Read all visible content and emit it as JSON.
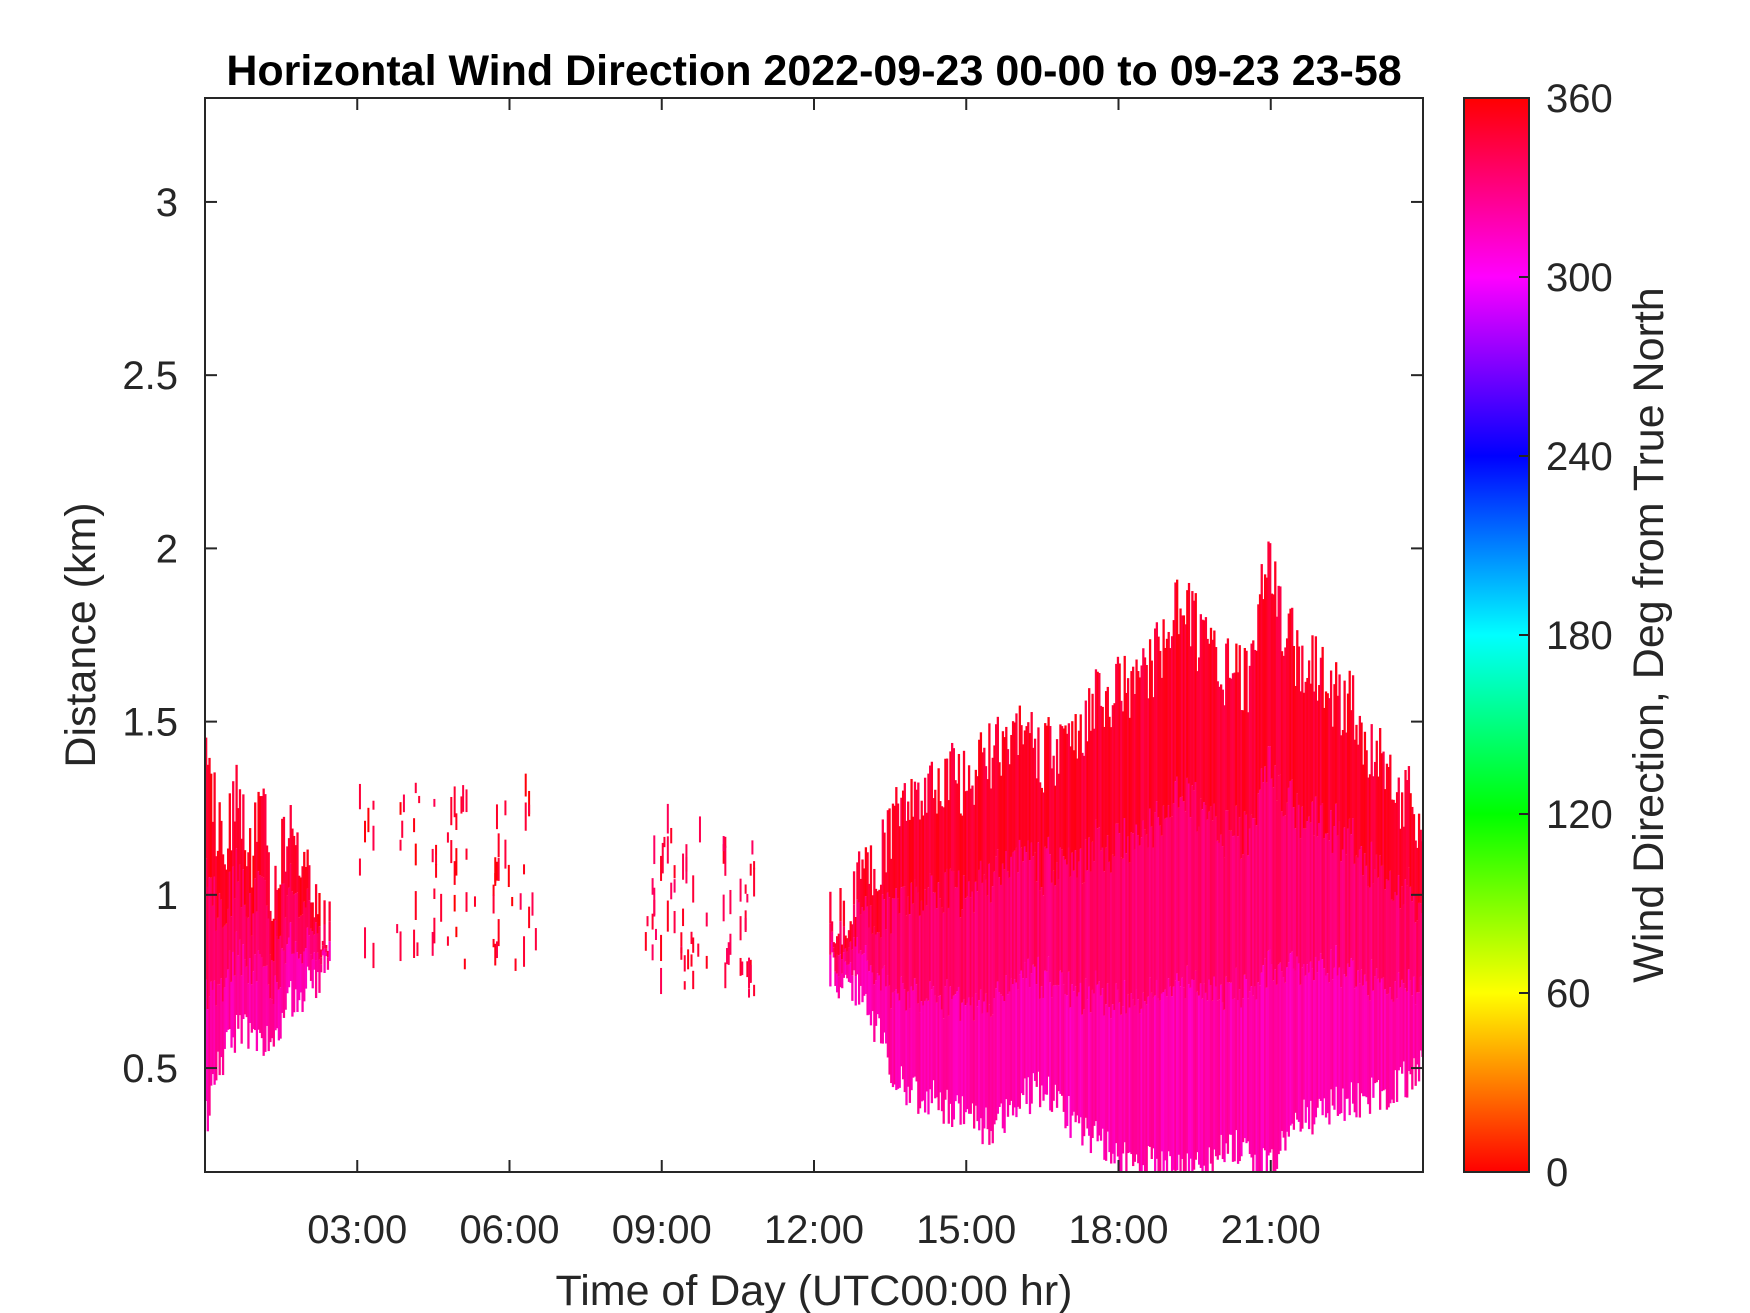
{
  "chart_data": {
    "type": "heatmap",
    "title": "Horizontal Wind Direction 2022-09-23 00-00 to 09-23 23-58",
    "xlabel": "Time of Day (UTC00:00 hr)",
    "ylabel": "Distance (km)",
    "xlim_hours": [
      0,
      24
    ],
    "ylim_km": [
      0.2,
      3.3
    ],
    "x_ticks": [
      {
        "value": 3,
        "label": "03:00"
      },
      {
        "value": 6,
        "label": "06:00"
      },
      {
        "value": 9,
        "label": "09:00"
      },
      {
        "value": 12,
        "label": "12:00"
      },
      {
        "value": 15,
        "label": "15:00"
      },
      {
        "value": 18,
        "label": "18:00"
      },
      {
        "value": 21,
        "label": "21:00"
      }
    ],
    "y_ticks": [
      {
        "value": 0.5,
        "label": "0.5"
      },
      {
        "value": 1,
        "label": "1"
      },
      {
        "value": 1.5,
        "label": "1.5"
      },
      {
        "value": 2,
        "label": "2"
      },
      {
        "value": 2.5,
        "label": "2.5"
      },
      {
        "value": 3,
        "label": "3"
      }
    ],
    "colorbar": {
      "label": "Wind Direction, Deg from True North",
      "range": [
        0,
        360
      ],
      "ticks": [
        {
          "value": 0,
          "label": "0"
        },
        {
          "value": 60,
          "label": "60"
        },
        {
          "value": 120,
          "label": "120"
        },
        {
          "value": 180,
          "label": "180"
        },
        {
          "value": 240,
          "label": "240"
        },
        {
          "value": 300,
          "label": "300"
        },
        {
          "value": 360,
          "label": "360"
        }
      ],
      "colormap": "hsv",
      "colors": [
        "#ff0000",
        "#ffff00",
        "#00ff00",
        "#00ffff",
        "#0000ff",
        "#ff00ff",
        "#ff0000"
      ]
    },
    "grid": false,
    "dominant_direction_deg": [
      330,
      360
    ],
    "data_regions": [
      {
        "name": "early-morning-cluster",
        "time_start_hr": 0,
        "time_end_hr": 2.5,
        "dist_min_km": 0.35,
        "dist_max_km": 1.45,
        "direction_deg": 345
      },
      {
        "name": "sparse-night-patches",
        "time_start_hr": 3,
        "time_end_hr": 6.5,
        "dist_min_km": 0.78,
        "dist_max_km": 1.3,
        "direction_deg": 350
      },
      {
        "name": "sparse-morning-patches",
        "time_start_hr": 8.6,
        "time_end_hr": 10.8,
        "dist_min_km": 0.7,
        "dist_max_km": 1.18,
        "direction_deg": 345
      },
      {
        "name": "afternoon-evening-mass",
        "time_start_hr": 12.3,
        "time_end_hr": 24,
        "dist_min_km": 0.2,
        "dist_max_km": 1.95,
        "direction_deg": 340
      }
    ],
    "envelope_top_km": {
      "hours": [
        12.3,
        12.8,
        13.2,
        13.5,
        14.0,
        14.5,
        15.0,
        15.5,
        16.0,
        16.5,
        17.0,
        17.5,
        18.0,
        18.5,
        19.0,
        19.3,
        19.6,
        20.0,
        20.5,
        20.9,
        21.2,
        21.5,
        22.0,
        22.5,
        23.0,
        23.5,
        24.0
      ],
      "top": [
        0.92,
        1.0,
        1.1,
        1.2,
        1.28,
        1.35,
        1.3,
        1.42,
        1.48,
        1.4,
        1.45,
        1.55,
        1.58,
        1.62,
        1.75,
        1.88,
        1.72,
        1.65,
        1.6,
        1.95,
        1.78,
        1.7,
        1.62,
        1.55,
        1.42,
        1.3,
        1.22
      ],
      "bottom": [
        0.78,
        0.72,
        0.62,
        0.5,
        0.42,
        0.4,
        0.36,
        0.32,
        0.4,
        0.45,
        0.36,
        0.3,
        0.25,
        0.22,
        0.2,
        0.2,
        0.2,
        0.25,
        0.28,
        0.2,
        0.3,
        0.35,
        0.38,
        0.4,
        0.42,
        0.45,
        0.5
      ]
    },
    "early_envelope_km": {
      "hours": [
        0.0,
        0.2,
        0.4,
        0.6,
        0.9,
        1.1,
        1.3,
        1.5,
        1.7,
        1.9,
        2.1,
        2.3,
        2.5
      ],
      "top": [
        1.45,
        1.22,
        1.15,
        1.3,
        1.1,
        1.32,
        1.0,
        1.15,
        1.2,
        1.1,
        0.98,
        0.92,
        0.85
      ],
      "bottom": [
        0.35,
        0.48,
        0.55,
        0.6,
        0.62,
        0.55,
        0.6,
        0.65,
        0.7,
        0.72,
        0.75,
        0.78,
        0.82
      ]
    }
  }
}
